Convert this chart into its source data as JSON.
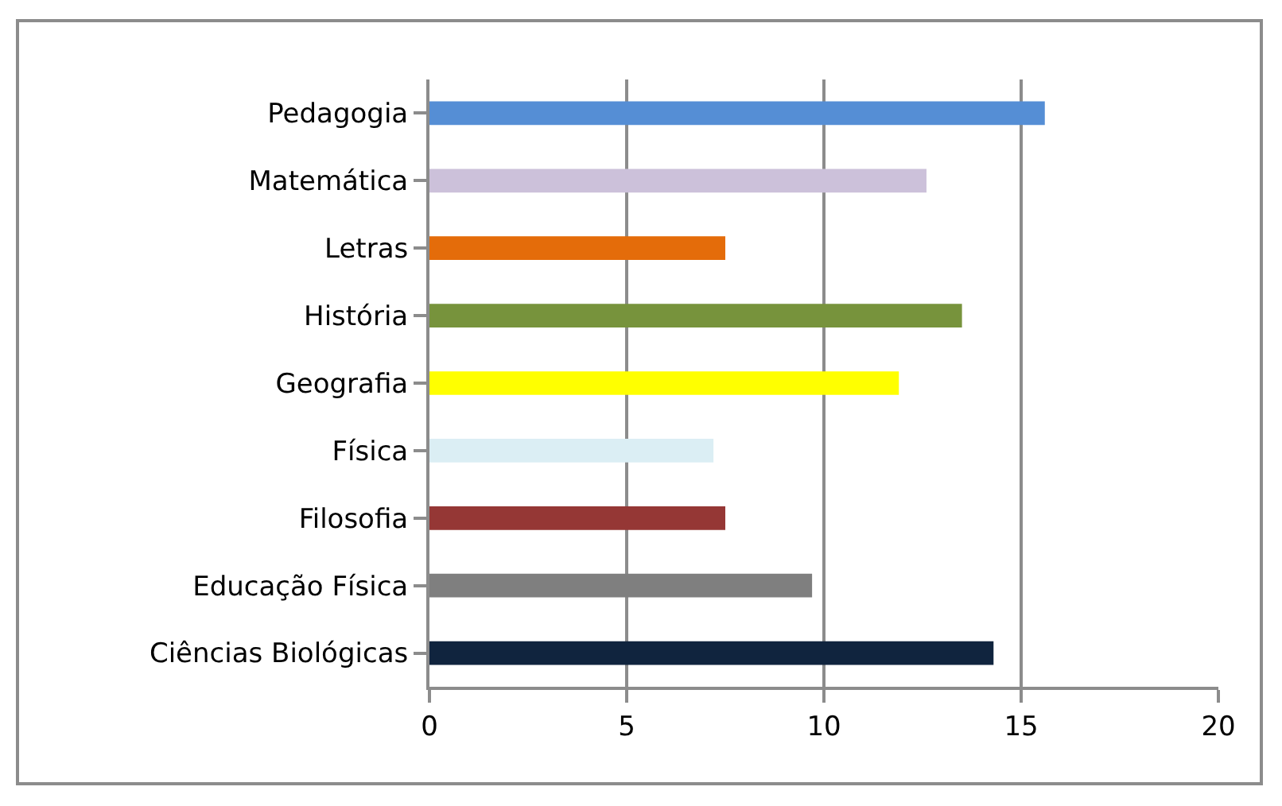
{
  "chart_data": {
    "type": "bar",
    "orientation": "horizontal",
    "categories": [
      "Pedagogia",
      "Matemática",
      "Letras",
      "História",
      "Geografia",
      "Física",
      "Filosofia",
      "Educação Física",
      "Ciências Biológicas"
    ],
    "values": [
      15.6,
      12.6,
      7.5,
      13.5,
      11.9,
      7.2,
      7.5,
      9.7,
      14.3
    ],
    "colors": [
      "#558ed5",
      "#ccc1da",
      "#e46c0a",
      "#77933c",
      "#ffff00",
      "#dbeef4",
      "#953735",
      "#7f7f7f",
      "#10243e"
    ],
    "xlim": [
      0,
      20
    ],
    "xticks": [
      0,
      5,
      10,
      15,
      20
    ],
    "grid": "x"
  }
}
